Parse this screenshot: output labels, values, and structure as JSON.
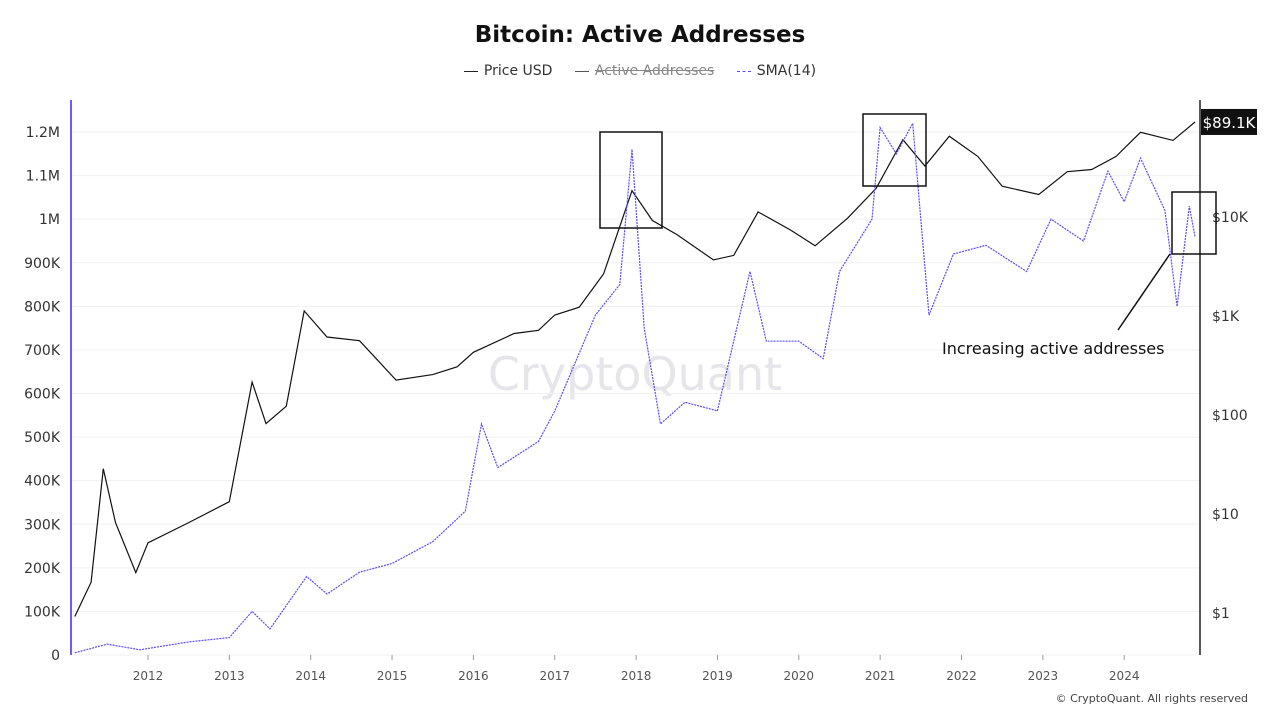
{
  "chart_data": {
    "type": "line",
    "title": "Bitcoin: Active Addresses",
    "legend": [
      {
        "name": "Price USD",
        "color": "#111111",
        "hidden": false
      },
      {
        "name": "Active Addresses",
        "color": "#555555",
        "hidden": true
      },
      {
        "name": "SMA(14)",
        "color": "#5b4bff",
        "hidden": false
      }
    ],
    "left_axis": {
      "ticks": [
        "0",
        "100K",
        "200K",
        "300K",
        "400K",
        "500K",
        "600K",
        "700K",
        "800K",
        "900K",
        "1M",
        "1.1M",
        "1.2M"
      ],
      "range": [
        0,
        1200000
      ]
    },
    "right_axis": {
      "scale": "log",
      "ticks": [
        "$1",
        "$10",
        "$100",
        "$1K",
        "$10K"
      ],
      "current_label": "$89.1K"
    },
    "x_axis": {
      "ticks": [
        "2012",
        "2013",
        "2014",
        "2015",
        "2016",
        "2017",
        "2018",
        "2019",
        "2020",
        "2021",
        "2022",
        "2023",
        "2024"
      ],
      "range": [
        2011.1,
        2024.9
      ]
    },
    "grid": true,
    "series": [
      {
        "name": "Price USD",
        "axis": "right",
        "color": "#111111",
        "x": [
          2011.1,
          2011.3,
          2011.45,
          2011.6,
          2011.85,
          2012.0,
          2012.5,
          2013.0,
          2013.28,
          2013.45,
          2013.7,
          2013.92,
          2014.2,
          2014.6,
          2015.05,
          2015.5,
          2015.8,
          2016.0,
          2016.5,
          2016.8,
          2017.0,
          2017.3,
          2017.6,
          2017.95,
          2018.2,
          2018.5,
          2018.95,
          2019.2,
          2019.5,
          2019.9,
          2020.2,
          2020.6,
          2020.95,
          2021.28,
          2021.55,
          2021.85,
          2022.2,
          2022.5,
          2022.95,
          2023.3,
          2023.6,
          2023.9,
          2024.2,
          2024.6,
          2024.87
        ],
        "y": [
          0.9,
          2,
          28,
          8,
          2.5,
          5,
          8,
          13,
          210,
          80,
          120,
          1100,
          600,
          550,
          220,
          250,
          300,
          420,
          650,
          700,
          1000,
          1200,
          2600,
          18000,
          9000,
          6500,
          3600,
          4000,
          11000,
          7200,
          5000,
          9500,
          19000,
          59000,
          32000,
          64000,
          40000,
          20000,
          16500,
          28000,
          29500,
          40000,
          70000,
          58000,
          89100
        ]
      },
      {
        "name": "SMA(14)",
        "axis": "left",
        "color": "#5b4bff",
        "x": [
          2011.1,
          2011.5,
          2011.9,
          2012.5,
          2013.0,
          2013.28,
          2013.5,
          2013.95,
          2014.2,
          2014.6,
          2015.0,
          2015.5,
          2015.9,
          2016.1,
          2016.3,
          2016.8,
          2017.0,
          2017.5,
          2017.8,
          2017.95,
          2018.1,
          2018.3,
          2018.6,
          2019.0,
          2019.4,
          2019.6,
          2020.0,
          2020.3,
          2020.5,
          2020.9,
          2021.0,
          2021.2,
          2021.4,
          2021.5,
          2021.6,
          2021.9,
          2022.3,
          2022.8,
          2023.1,
          2023.5,
          2023.8,
          2024.0,
          2024.2,
          2024.5,
          2024.65,
          2024.8,
          2024.87
        ],
        "y": [
          5000,
          25000,
          12000,
          30000,
          40000,
          100000,
          60000,
          180000,
          140000,
          190000,
          210000,
          260000,
          330000,
          530000,
          430000,
          490000,
          560000,
          780000,
          850000,
          1160000,
          750000,
          530000,
          580000,
          560000,
          880000,
          720000,
          720000,
          680000,
          880000,
          1000000,
          1210000,
          1150000,
          1220000,
          1000000,
          780000,
          920000,
          940000,
          880000,
          1000000,
          950000,
          1110000,
          1040000,
          1140000,
          1020000,
          800000,
          1030000,
          960000
        ]
      }
    ],
    "annotations": [
      {
        "text": "Increasing active addresses"
      }
    ],
    "watermark": "CryptoQuant",
    "copyright": "© CryptoQuant. All rights reserved"
  }
}
